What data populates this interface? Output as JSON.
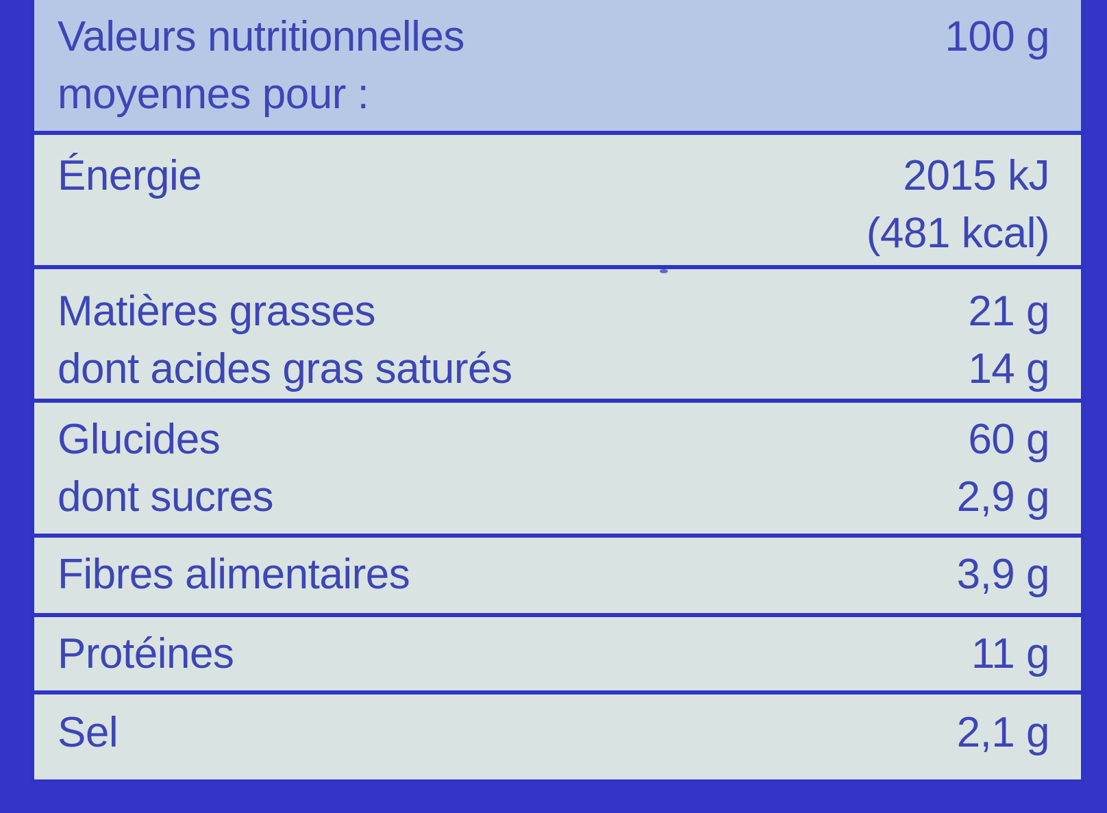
{
  "nutrition_label": {
    "header": {
      "title_line_1": "Valeurs nutritionnelles",
      "title_line_2": "moyennes pour :",
      "per_amount": "100 g"
    },
    "energy": {
      "label": "Énergie",
      "kj": "2015 kJ",
      "kcal": "(481 kcal)"
    },
    "fat": {
      "label": "Matières grasses",
      "value": "21 g",
      "saturated_label": "dont acides gras saturés",
      "saturated_value": "14 g"
    },
    "carbohydrates": {
      "label": "Glucides",
      "value": "60 g",
      "sugars_label": "dont sucres",
      "sugars_value": "2,9 g"
    },
    "fibre": {
      "label": "Fibres alimentaires",
      "value": "3,9 g"
    },
    "protein": {
      "label": "Protéines",
      "value": "11 g"
    },
    "salt": {
      "label": "Sel",
      "value": "2,1 g"
    },
    "colors": {
      "background_blue": "#3434c8",
      "text_blue": "#3d45b7",
      "header_fill": "#b7c8e6",
      "panel_fill": "#d9e3e1"
    }
  }
}
